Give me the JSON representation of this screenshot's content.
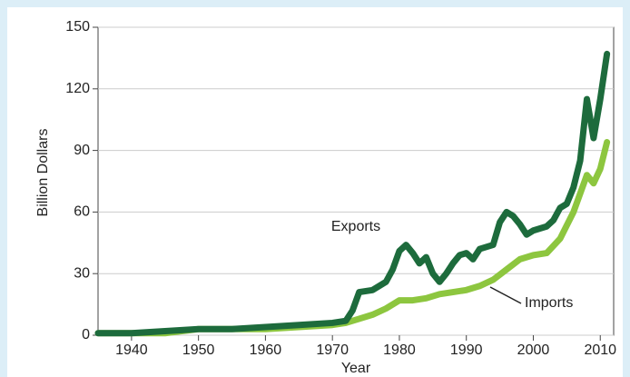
{
  "chart_data": {
    "type": "line",
    "x_label": "Year",
    "y_label": "Billion Dollars",
    "xlim": [
      1935,
      2012
    ],
    "xticks": [
      1940,
      1950,
      1960,
      1970,
      1980,
      1990,
      2000,
      2010
    ],
    "ylim": [
      0,
      150
    ],
    "yticks": [
      0,
      30,
      60,
      90,
      120,
      150
    ],
    "grid": true,
    "series": [
      {
        "name": "Exports",
        "color": "#1d6b3c",
        "x": [
          1935,
          1940,
          1945,
          1950,
          1955,
          1960,
          1965,
          1970,
          1972,
          1973,
          1974,
          1976,
          1978,
          1979,
          1980,
          1981,
          1982,
          1983,
          1984,
          1985,
          1986,
          1987,
          1988,
          1989,
          1990,
          1991,
          1992,
          1993,
          1994,
          1995,
          1996,
          1997,
          1998,
          1999,
          2000,
          2001,
          2002,
          2003,
          2004,
          2005,
          2006,
          2007,
          2008,
          2009,
          2010,
          2011
        ],
        "values": [
          1,
          1,
          2,
          3,
          3,
          4,
          5,
          6,
          7,
          12,
          21,
          22,
          26,
          32,
          41,
          44,
          40,
          35,
          38,
          30,
          26,
          30,
          35,
          39,
          40,
          37,
          42,
          43,
          44,
          55,
          60,
          58,
          54,
          49,
          51,
          52,
          53,
          56,
          62,
          64,
          72,
          85,
          115,
          96,
          115,
          137
        ]
      },
      {
        "name": "Imports",
        "color": "#8dc63f",
        "x": [
          1935,
          1940,
          1945,
          1950,
          1955,
          1960,
          1965,
          1970,
          1972,
          1974,
          1976,
          1978,
          1980,
          1982,
          1984,
          1986,
          1988,
          1990,
          1992,
          1994,
          1996,
          1998,
          2000,
          2002,
          2004,
          2006,
          2008,
          2009,
          2010,
          2011
        ],
        "values": [
          1,
          1,
          1,
          3,
          3,
          3,
          4,
          5,
          6,
          8,
          10,
          13,
          17,
          17,
          18,
          20,
          21,
          22,
          24,
          27,
          32,
          37,
          39,
          40,
          47,
          60,
          78,
          74,
          81,
          94
        ]
      }
    ]
  }
}
